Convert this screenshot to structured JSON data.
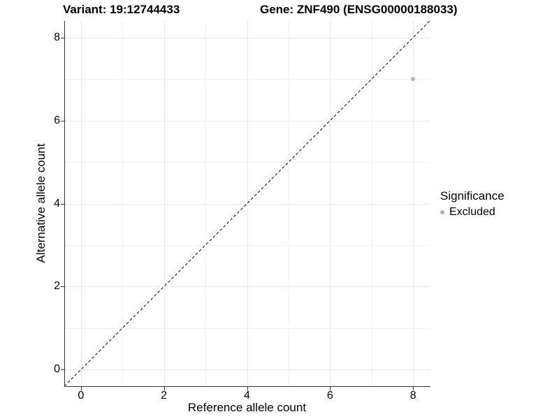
{
  "chart_data": {
    "type": "scatter",
    "title_left": "Variant: 19:12744433",
    "title_right": "Gene: ZNF490 (ENSG00000188033)",
    "xlabel": "Reference allele count",
    "ylabel": "Alternative allele count",
    "xlim": [
      -0.4,
      8.4
    ],
    "ylim": [
      -0.4,
      8.4
    ],
    "x_major_ticks": [
      0,
      2,
      4,
      6,
      8
    ],
    "y_major_ticks": [
      0,
      2,
      4,
      6,
      8
    ],
    "x_minor_gridlines": [
      1,
      3,
      5,
      7
    ],
    "y_minor_gridlines": [
      1,
      3,
      5,
      7
    ],
    "grid": true,
    "identity_line": {
      "style": "dashed",
      "from": [
        -0.4,
        -0.4
      ],
      "to": [
        8.4,
        8.4
      ],
      "color": "#000000"
    },
    "series": [
      {
        "name": "Excluded",
        "color": "#b8b8b8",
        "points": [
          [
            8,
            7
          ]
        ]
      }
    ],
    "legend": {
      "title": "Significance",
      "position": "right",
      "entries": [
        "Excluded"
      ]
    }
  },
  "colors": {
    "grid_major": "#e9e9e9",
    "grid_minor": "#f3f3f3",
    "axis_line": "#333333",
    "point": "#b8b8b8",
    "legend_dot": "#b0b0b0"
  }
}
